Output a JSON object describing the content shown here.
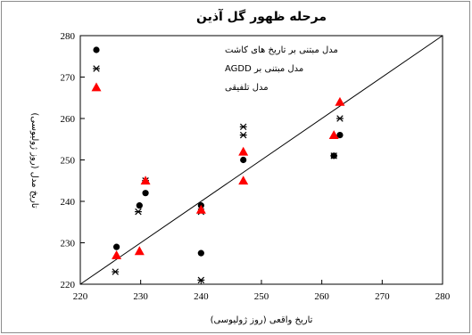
{
  "chart_data": {
    "type": "scatter",
    "title": "مرحله ظهور گل آذین",
    "xlabel": "تاریخ واقعی (روز ژولیوسی)",
    "ylabel": "تاریخ مدل (روز ژولیوسی)",
    "xlim": [
      220,
      280
    ],
    "ylim": [
      220,
      280
    ],
    "xticks": [
      220,
      230,
      240,
      250,
      260,
      270,
      280
    ],
    "yticks": [
      220,
      230,
      240,
      250,
      260,
      270,
      280
    ],
    "grid": false,
    "legend_position": "top-right",
    "reference_line": "y = x",
    "series": [
      {
        "name": "مدل مبتنی بر تاریخ های کاشت",
        "marker": "circle",
        "color": "#000000",
        "points": [
          [
            226,
            229
          ],
          [
            229.8,
            239
          ],
          [
            230.8,
            242
          ],
          [
            240,
            239
          ],
          [
            240,
            227.5
          ],
          [
            247,
            250
          ],
          [
            262,
            251
          ],
          [
            263,
            256
          ]
        ]
      },
      {
        "name": "مدل مبتنی بر AGDD",
        "marker": "asterisk",
        "color": "#000000",
        "points": [
          [
            225.8,
            223
          ],
          [
            229.6,
            237.5
          ],
          [
            230.8,
            245
          ],
          [
            240,
            221
          ],
          [
            240,
            237.5
          ],
          [
            247,
            256
          ],
          [
            247,
            258
          ],
          [
            262,
            251
          ],
          [
            263,
            260
          ]
        ]
      },
      {
        "name": "مدل تلفیقی",
        "marker": "triangle",
        "color": "#ff0000",
        "points": [
          [
            226,
            227
          ],
          [
            229.8,
            228
          ],
          [
            230.8,
            245
          ],
          [
            240,
            238
          ],
          [
            247,
            245
          ],
          [
            247,
            252
          ],
          [
            262,
            256
          ],
          [
            263,
            264
          ]
        ]
      }
    ]
  }
}
